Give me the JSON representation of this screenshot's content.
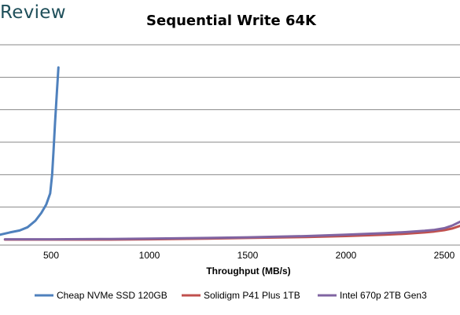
{
  "brand": {
    "text": "Review"
  },
  "chart_data": {
    "type": "line",
    "title": "Sequential Write 64K",
    "xlabel": "Throughput (MB/s)",
    "ylabel": "",
    "xlim": [
      240,
      2580
    ],
    "ylim": [
      0,
      6
    ],
    "x_ticks": [
      500,
      1000,
      1500,
      2000,
      2500
    ],
    "x_tick_labels": [
      "500",
      "1000",
      "1500",
      "2000",
      "2500"
    ],
    "grid": true,
    "legend": "bottom",
    "colors": {
      "series0": "#4f81bd",
      "series1": "#c0504d",
      "series2": "#8064a2",
      "grid": "#898989"
    },
    "series": [
      {
        "name": "Cheap NVMe SSD 120GB",
        "color": "#4f81bd",
        "x": [
          240,
          290,
          340,
          380,
          420,
          450,
          475,
          495,
          505,
          512,
          520,
          530,
          537
        ],
        "y": [
          0.15,
          0.22,
          0.28,
          0.38,
          0.58,
          0.82,
          1.08,
          1.42,
          2.0,
          2.7,
          3.6,
          4.6,
          5.3
        ]
      },
      {
        "name": "Solidigm P41 Plus 1TB",
        "color": "#c0504d",
        "x": [
          265,
          500,
          800,
          1000,
          1300,
          1500,
          1800,
          2000,
          2200,
          2300,
          2400,
          2450,
          2500,
          2540,
          2580
        ],
        "y": [
          0.0,
          0.0,
          0.0,
          0.01,
          0.03,
          0.05,
          0.08,
          0.11,
          0.15,
          0.18,
          0.22,
          0.25,
          0.29,
          0.34,
          0.42
        ]
      },
      {
        "name": "Intel 670p 2TB Gen3",
        "color": "#8064a2",
        "x": [
          265,
          500,
          800,
          1000,
          1300,
          1500,
          1800,
          2000,
          2200,
          2300,
          2400,
          2450,
          2500,
          2540,
          2580
        ],
        "y": [
          0.01,
          0.01,
          0.02,
          0.03,
          0.05,
          0.07,
          0.11,
          0.15,
          0.2,
          0.23,
          0.27,
          0.3,
          0.35,
          0.43,
          0.55
        ]
      }
    ]
  }
}
